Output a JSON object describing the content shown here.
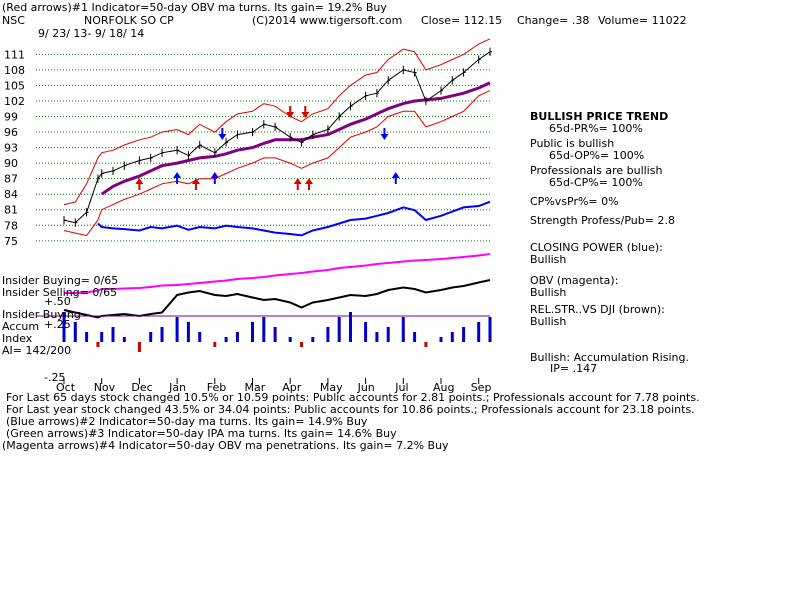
{
  "header": {
    "line1": "(Red arrows)#1 Indicator=50-day OBV ma turns. Its gain= 19.2% Buy",
    "symbol": "NSC",
    "company": "NORFOLK SO CP",
    "copyright": "(C)2014 www.tigersoft.com",
    "close": "Close= 112.15",
    "change": "Change= .38",
    "volume": "Volume= 11022",
    "date_range": "9/ 23/ 13- 9/ 18/ 14"
  },
  "side_panel": {
    "trend_title": "BULLISH PRICE TREND",
    "pr": "65d-PR%= 100%",
    "public_title": "Public is bullish",
    "op": "65d-OP%= 100%",
    "prof_title": "Professionals are bullish",
    "cp": "65d-CP%= 100%",
    "cpvspr": "CP%vsPr%=  0%",
    "strength": "Strength Profess/Pub= 2.8",
    "closing_power": "CLOSING POWER (blue):",
    "closing_power_state": "Bullish",
    "obv": "OBV (magenta):",
    "obv_state": "Bullish",
    "relstr": "REL.STR..VS DJI (brown):",
    "relstr_state": "Bullish",
    "accum": "Bullish: Accumulation Rising.",
    "ip": "IP=  .147"
  },
  "left_labels": {
    "insider_buying": "Insider Buying= 0/65",
    "insider_selling": "Insider Selling= 0/65",
    "plus50": "+.50",
    "insider_buying2": "Insider Buying",
    "accum": "Accum",
    "plus25": "+.25",
    "index": "Index",
    "ai": "AI= 142/200",
    "minus25": "-.25"
  },
  "footer": {
    "line1": "For Last 65 days stock changed  10.5% or  10.59 points:  Public accounts for  2.81 points.;  Professionals account for  7.78 points.",
    "line2": "For Last year stock changed  43.5% or  34.04 points:  Public accounts for  10.86 points.;  Professionals account for  23.18 points.",
    "line3": "(Blue arrows)#2 Indicator=50-day ma turns. Its gain= 14.9% Buy",
    "line4": "(Green arrows)#3 Indicator=50-day IPA ma turns. Its gain= 14.6% Buy",
    "line5": "(Magenta arrows)#4 Indicator=50-day OBV ma penetrations. Its gain= 7.2% Buy"
  },
  "colors": {
    "price": "#000000",
    "bands": "#e00000",
    "ma50": "#800080",
    "closing_power": "#0000ff",
    "obv": "#ff00ff",
    "relstr": "#000000",
    "accum_pos": "#0000cc",
    "accum_neg": "#cc0000",
    "grid": "#008000"
  },
  "chart_data": {
    "type": "line",
    "title": "NORFOLK SO CP",
    "y_ticks": [
      75,
      78,
      81,
      84,
      87,
      90,
      93,
      96,
      99,
      102,
      105,
      108,
      111
    ],
    "ylim": [
      74,
      113
    ],
    "x_ticks": [
      "Oct",
      "Nov",
      "Dec",
      "Jan",
      "Feb",
      "Mar",
      "Apr",
      "May",
      "Jun",
      "Jul",
      "Aug",
      "Sep"
    ],
    "price": {
      "x": [
        0,
        0.3,
        0.6,
        0.9,
        1,
        1.3,
        1.6,
        2,
        2.3,
        2.6,
        3,
        3.3,
        3.6,
        4,
        4.3,
        4.6,
        5,
        5.3,
        5.6,
        6,
        6.3,
        6.6,
        7,
        7.3,
        7.6,
        8,
        8.3,
        8.6,
        9,
        9.3,
        9.6,
        10,
        10.3,
        10.6,
        11,
        11.3
      ],
      "values": [
        79,
        78.5,
        80.5,
        87,
        88,
        88.5,
        89.5,
        90.5,
        91,
        92,
        92.5,
        91.5,
        93.5,
        92,
        94,
        95.5,
        96,
        97.5,
        97,
        95,
        94,
        95.5,
        96.5,
        99,
        101,
        103,
        103.5,
        106,
        108,
        107.5,
        102,
        104,
        106,
        107.5,
        110,
        111.5
      ]
    },
    "upper_band": [
      82,
      82.5,
      86,
      91,
      92,
      92.5,
      93.5,
      94.5,
      95,
      96,
      96.5,
      95.5,
      97.5,
      96,
      98,
      99.5,
      100,
      101.5,
      101,
      99,
      98,
      99.5,
      100.5,
      103,
      105,
      107,
      107.5,
      110,
      112,
      111.5,
      108,
      109,
      110,
      111,
      113,
      114
    ],
    "lower_band": [
      77,
      76.5,
      76,
      79,
      81,
      82,
      83,
      84,
      85,
      86,
      86.5,
      86,
      87,
      87,
      88,
      89,
      90,
      91,
      91,
      90,
      89,
      90,
      91,
      93,
      95,
      96,
      97,
      99,
      100,
      100,
      97,
      98,
      99,
      100,
      103,
      104
    ],
    "ma50": [
      null,
      null,
      null,
      null,
      84,
      85.5,
      86.5,
      87.5,
      88.5,
      89.5,
      90,
      90.5,
      91,
      91.3,
      91.8,
      92.5,
      93,
      93.8,
      94.5,
      94.5,
      94.5,
      95,
      95.5,
      96.5,
      97.5,
      98.5,
      99.5,
      100.5,
      101.5,
      102,
      102.2,
      102.5,
      103,
      103.5,
      104.5,
      105.5
    ],
    "closing_power": [
      null,
      null,
      null,
      0.55,
      0.5,
      0.48,
      0.47,
      0.45,
      0.5,
      0.48,
      0.52,
      0.46,
      0.5,
      0.48,
      0.52,
      0.5,
      0.48,
      0.45,
      0.42,
      0.4,
      0.38,
      0.45,
      0.5,
      0.55,
      0.6,
      0.62,
      0.66,
      0.7,
      0.78,
      0.74,
      0.6,
      0.66,
      0.72,
      0.78,
      0.8,
      0.86
    ],
    "obv": [
      0.1,
      0.1,
      0.11,
      0.15,
      0.18,
      0.18,
      0.19,
      0.2,
      0.22,
      0.25,
      0.26,
      0.28,
      0.3,
      0.33,
      0.35,
      0.38,
      0.4,
      0.42,
      0.45,
      0.48,
      0.5,
      0.53,
      0.56,
      0.6,
      0.62,
      0.65,
      0.68,
      0.7,
      0.73,
      0.75,
      0.76,
      0.78,
      0.8,
      0.82,
      0.85,
      0.88
    ],
    "relstr": [
      0.4,
      0.35,
      0.3,
      0.25,
      0.28,
      0.3,
      0.32,
      0.28,
      0.32,
      0.35,
      0.7,
      0.75,
      0.78,
      0.7,
      0.68,
      0.72,
      0.65,
      0.6,
      0.62,
      0.55,
      0.45,
      0.55,
      0.6,
      0.65,
      0.7,
      0.68,
      0.72,
      0.8,
      0.85,
      0.82,
      0.75,
      0.8,
      0.85,
      0.88,
      0.95,
      1.0
    ],
    "accum": [
      0.3,
      0.2,
      0.1,
      -0.05,
      0.1,
      0.15,
      0.05,
      -0.1,
      0.1,
      0.15,
      0.25,
      0.2,
      0.1,
      -0.05,
      0.05,
      0.1,
      0.2,
      0.25,
      0.15,
      0.05,
      -0.05,
      0.05,
      0.15,
      0.25,
      0.3,
      0.2,
      0.1,
      0.15,
      0.25,
      0.1,
      -0.05,
      0.05,
      0.1,
      0.15,
      0.2,
      0.25
    ],
    "arrows": {
      "red_up": [
        2,
        3.5,
        6.2,
        6.5
      ],
      "red_down": [
        6,
        6.4
      ],
      "blue_up": [
        3,
        4,
        8.8
      ],
      "blue_down": [
        4.2,
        8.5
      ]
    }
  }
}
